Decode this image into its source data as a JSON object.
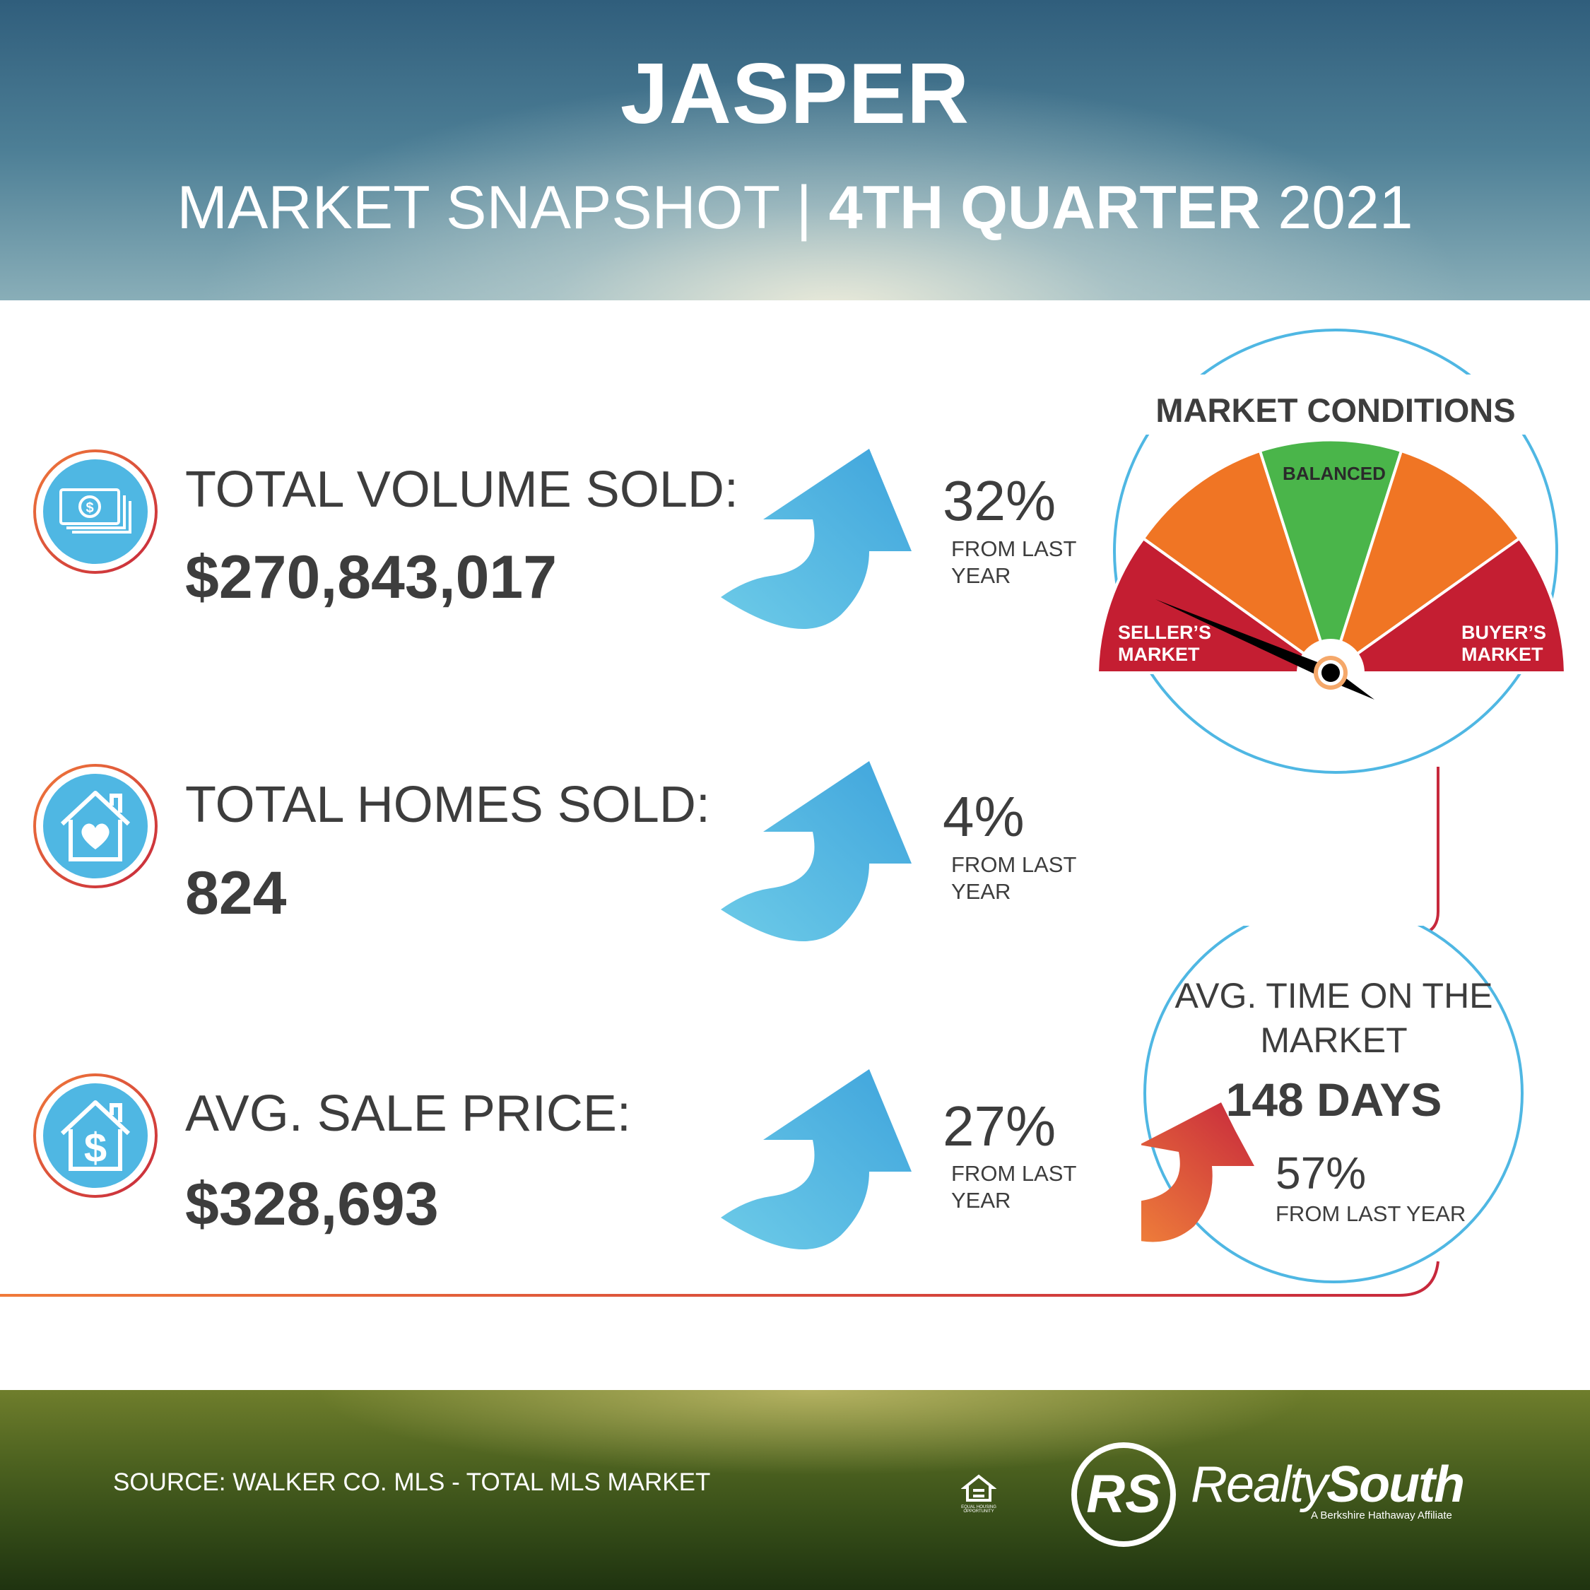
{
  "header": {
    "city": "JASPER",
    "subtitle_light": "MARKET SNAPSHOT | ",
    "subtitle_bold": "4TH QUARTER",
    "subtitle_year": " 2021"
  },
  "metrics": [
    {
      "label": "TOTAL VOLUME SOLD:",
      "value": "$270,843,017",
      "change": "32%",
      "change_note": "FROM LAST YEAR",
      "icon": "money-icon"
    },
    {
      "label": "TOTAL HOMES SOLD:",
      "value": "824",
      "change": "4%",
      "change_note": "FROM LAST YEAR",
      "icon": "house-heart-icon"
    },
    {
      "label": "AVG. SALE PRICE:",
      "value": "$328,693",
      "change": "27%",
      "change_note": "FROM LAST YEAR",
      "icon": "house-dollar-icon"
    }
  ],
  "market_conditions": {
    "title": "MARKET CONDITIONS",
    "sellers": "SELLER’S MARKET",
    "balanced": "BALANCED",
    "buyers": "BUYER’S MARKET",
    "zone_colors": [
      "#c41e32",
      "#f07524",
      "#4ab54a",
      "#f07524",
      "#c41e32"
    ],
    "needle_position": "seller's market"
  },
  "days_on_market": {
    "title": "AVG. TIME ON THE MARKET",
    "value": "148 DAYS",
    "change": "57%",
    "change_note": "FROM LAST YEAR"
  },
  "footer": {
    "source": "SOURCE: WALKER CO. MLS - TOTAL MLS MARKET",
    "eho": "EQUAL HOUSING OPPORTUNITY",
    "brand_regular": "Realty",
    "brand_bold": "South",
    "brand_tagline": "A Berkshire Hathaway Affiliate"
  },
  "colors": {
    "accent_blue": "#4fb7e3",
    "accent_orange": "#f07a3a",
    "accent_red": "#c7283c",
    "text_dark": "#3d3d3d"
  }
}
